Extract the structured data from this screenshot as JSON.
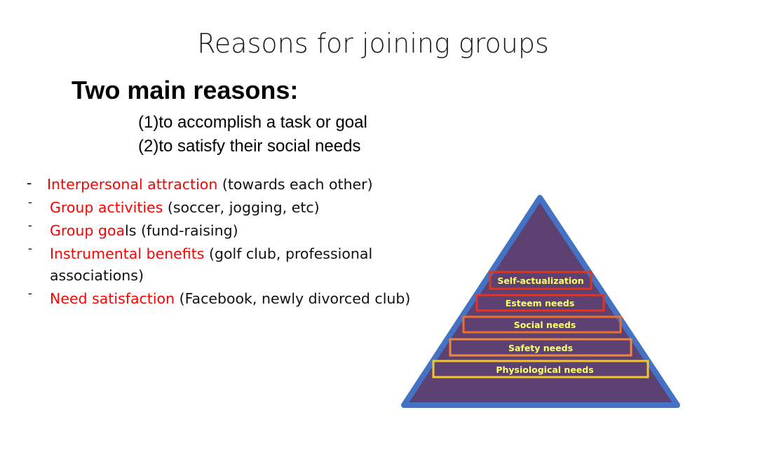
{
  "slide": {
    "title": "Reasons for joining groups",
    "subtitle": "Two main reasons:",
    "reasons": [
      "(1)to accomplish a task or goal",
      "(2)to satisfy their social needs"
    ],
    "bullets": [
      {
        "dash": "-",
        "highlight": "Interpersonal attraction",
        "detail": " (towards each other)"
      },
      {
        "dash": "-",
        "highlight": "Group activities",
        "detail": " (soccer, jogging, etc)"
      },
      {
        "dash": "-",
        "highlight": "Group goa",
        "detail": "ls (fund-raising)"
      },
      {
        "dash": "-",
        "highlight": "Instrumental benefits",
        "detail": " (golf club, professional associations)"
      },
      {
        "dash": "-",
        "highlight": "Need satisfaction",
        "detail": " (Facebook, newly divorced club)"
      }
    ]
  },
  "pyramid": {
    "levels": [
      {
        "label": "Self-actualization",
        "color": "#d93a1f"
      },
      {
        "label": "Esteem needs",
        "color": "#e8341c"
      },
      {
        "label": "Social needs",
        "color": "#f0702a"
      },
      {
        "label": "Safety needs",
        "color": "#f08a3a"
      },
      {
        "label": "Physiological needs",
        "color": "#f5c52a"
      }
    ],
    "fill_color": "#5d4173",
    "outline_color": "#4472c4",
    "label_color": "#ffff66"
  }
}
